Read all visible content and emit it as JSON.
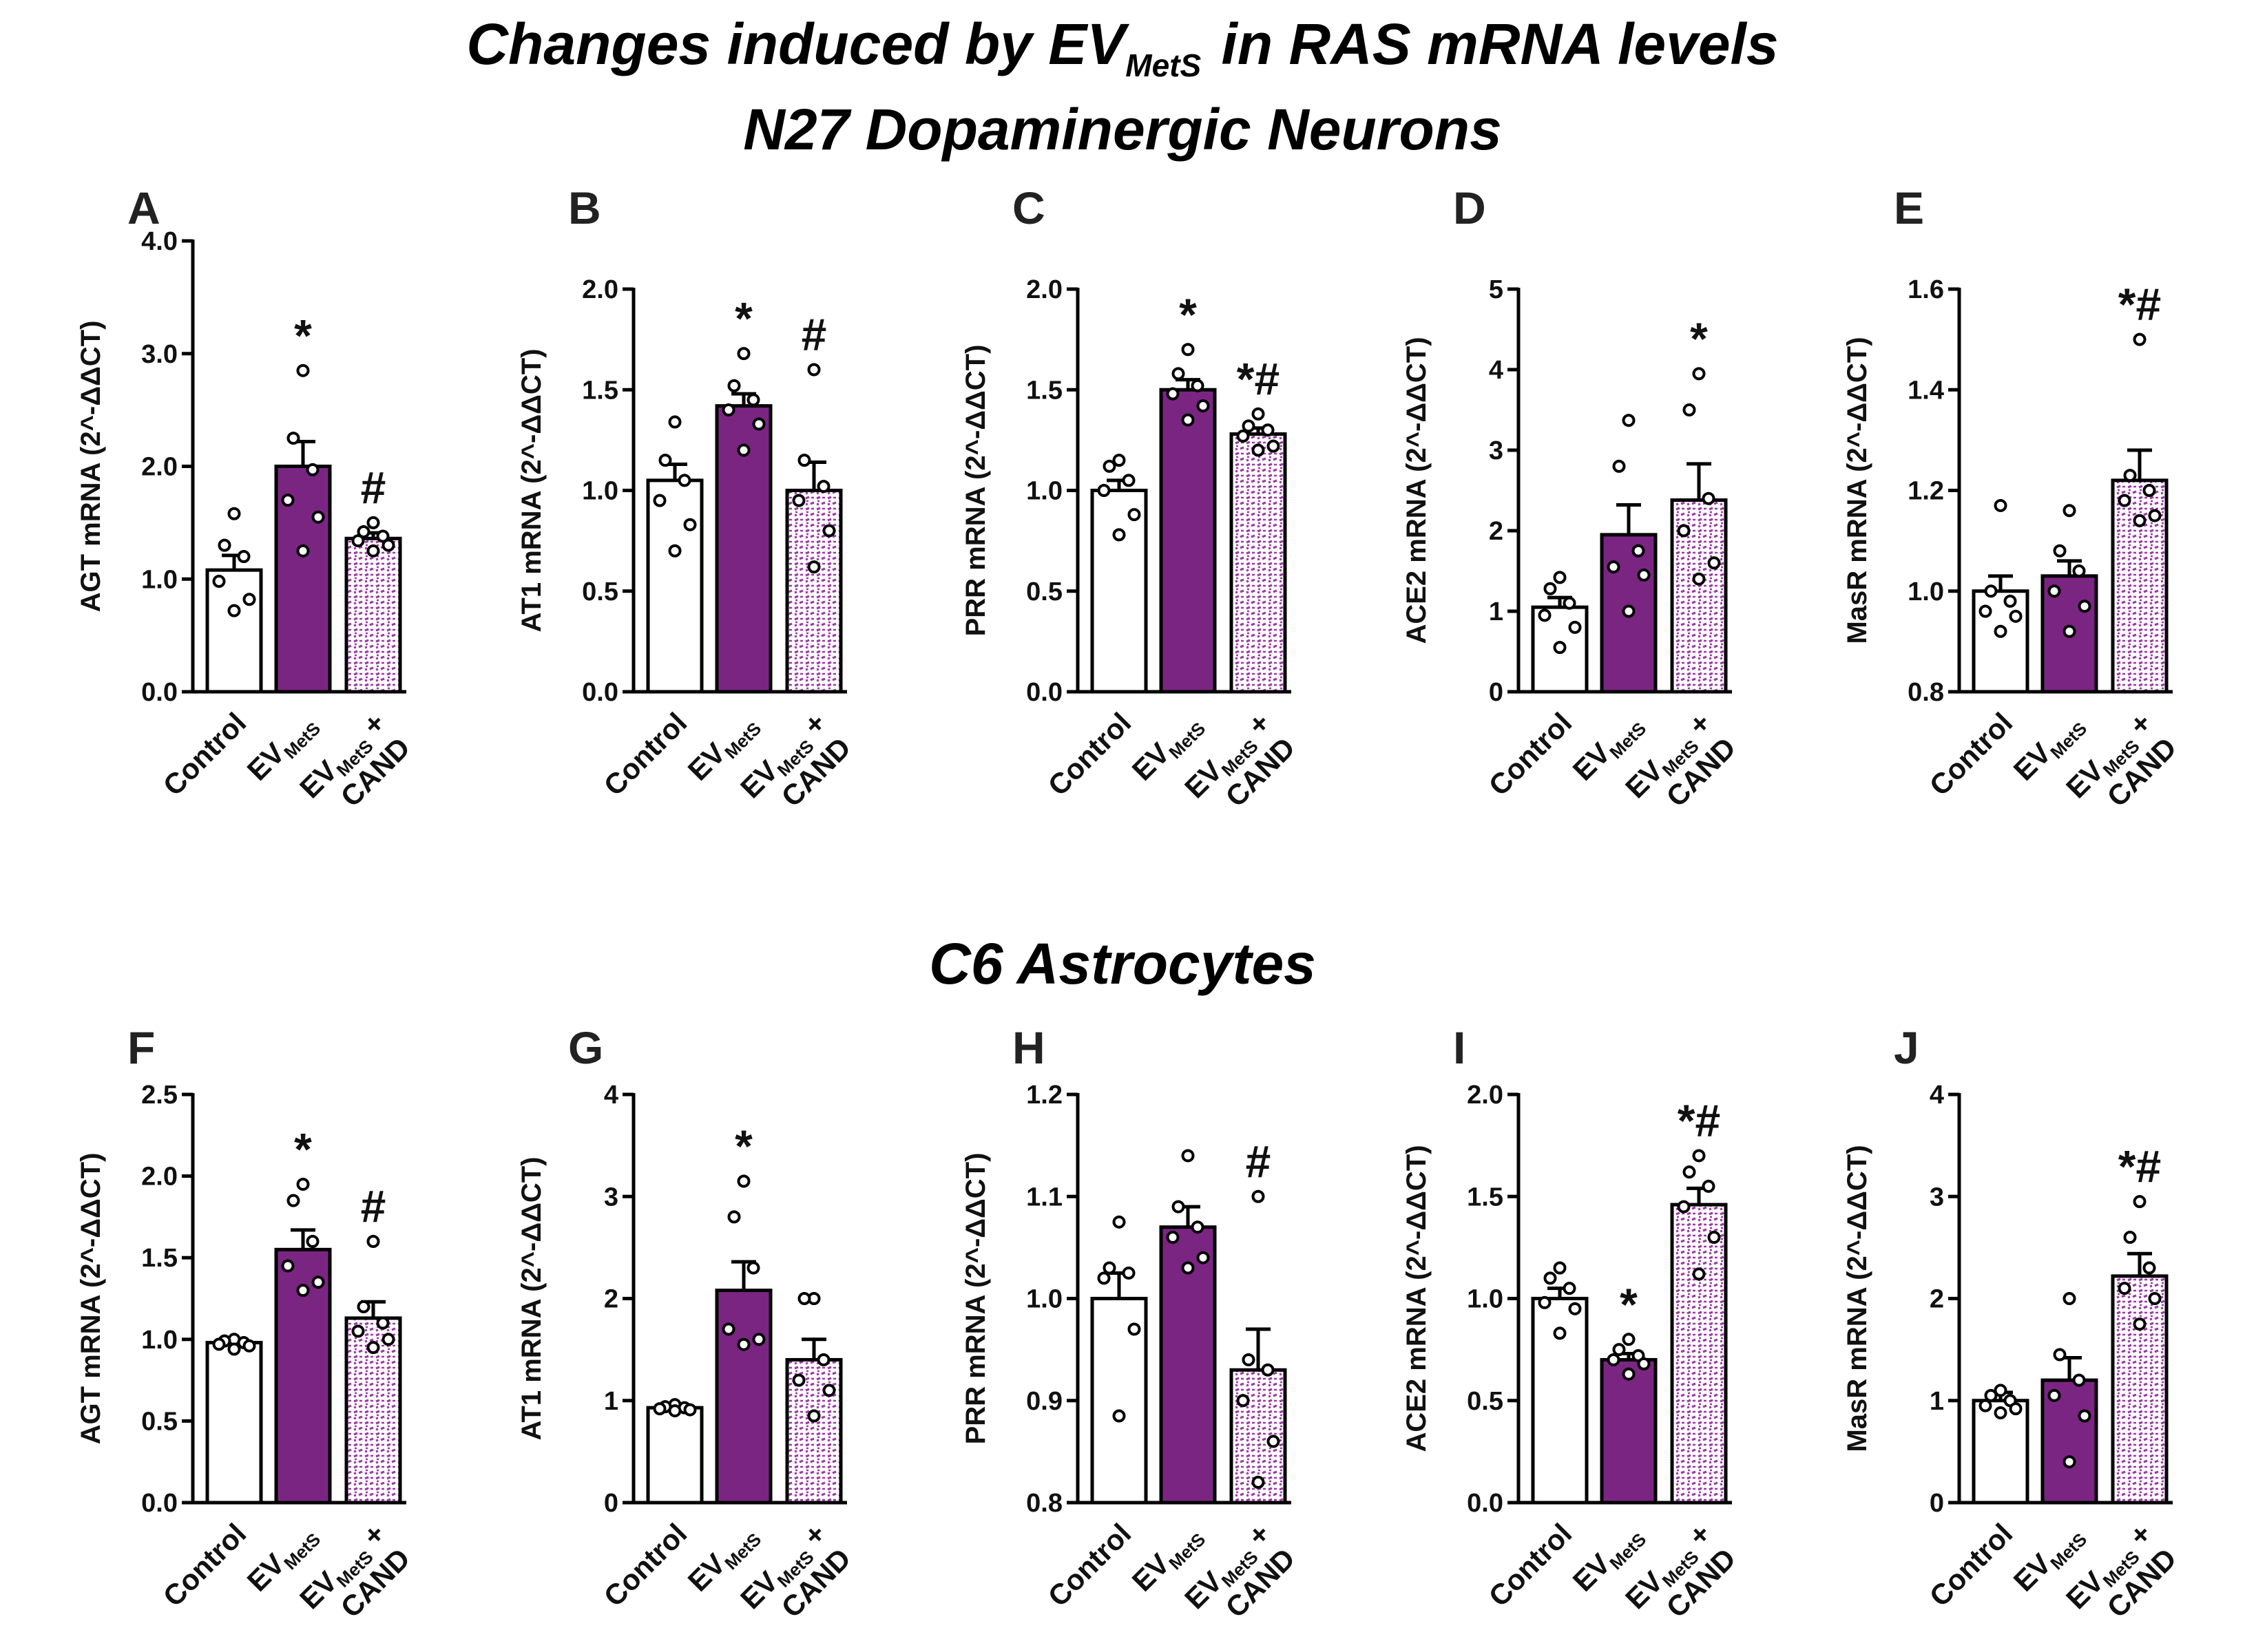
{
  "figure": {
    "title_prefix": "Changes induced by EV",
    "title_sub": "MetS",
    "title_suffix": " in RAS mRNA levels",
    "section1": "N27 Dopaminergic Neurons",
    "section2": "C6 Astrocytes"
  },
  "colors": {
    "control": "#ffffff",
    "evmets": "#7b2583",
    "cand_pattern": "#9b3ba6",
    "axis": "#000000"
  },
  "groups": [
    {
      "main": "Control",
      "sub": "",
      "tail": "",
      "line2": ""
    },
    {
      "main": "EV",
      "sub": "MetS",
      "tail": "",
      "line2": ""
    },
    {
      "main": "EV",
      "sub": "MetS",
      "tail": " +",
      "line2": "CAND"
    }
  ],
  "chart_data": [
    {
      "type": "bar",
      "panel": "A",
      "ylabel": "AGT mRNA (2^-ΔΔCT)",
      "ylim": [
        0,
        4.0
      ],
      "yticks": [
        "0.0",
        "1.0",
        "2.0",
        "3.0",
        "4.0"
      ],
      "ytick_values": [
        0,
        1,
        2,
        3,
        4
      ],
      "categories": [
        "Control",
        "EV MetS",
        "EV MetS + CAND"
      ],
      "values": [
        1.08,
        2.0,
        1.36
      ],
      "sem": [
        0.13,
        0.22,
        0.05
      ],
      "points": [
        [
          1.58,
          1.3,
          1.2,
          0.98,
          0.82,
          0.72
        ],
        [
          2.85,
          2.25,
          1.97,
          1.7,
          1.55,
          1.25
        ],
        [
          1.5,
          1.42,
          1.38,
          1.34,
          1.3,
          1.25
        ]
      ],
      "annotations": [
        "",
        "*",
        "#"
      ]
    },
    {
      "type": "bar",
      "panel": "B",
      "ylabel": "AT1 mRNA (2^-ΔΔCT)",
      "ylim": [
        0,
        2.0
      ],
      "yticks": [
        "0.0",
        "0.5",
        "1.0",
        "1.5",
        "2.0"
      ],
      "ytick_values": [
        0,
        0.5,
        1,
        1.5,
        2
      ],
      "categories": [
        "Control",
        "EV MetS",
        "EV MetS + CAND"
      ],
      "values": [
        1.05,
        1.42,
        1.0
      ],
      "sem": [
        0.08,
        0.06,
        0.14
      ],
      "points": [
        [
          1.34,
          1.15,
          1.05,
          0.95,
          0.83,
          0.7
        ],
        [
          1.68,
          1.52,
          1.45,
          1.4,
          1.33,
          1.2
        ],
        [
          1.6,
          1.15,
          1.02,
          0.95,
          0.8,
          0.62
        ]
      ],
      "annotations": [
        "",
        "*",
        "#"
      ]
    },
    {
      "type": "bar",
      "panel": "C",
      "ylabel": "PRR mRNA (2^-ΔΔCT)",
      "ylim": [
        0,
        2.0
      ],
      "yticks": [
        "0.0",
        "0.5",
        "1.0",
        "1.5",
        "2.0"
      ],
      "ytick_values": [
        0,
        0.5,
        1,
        1.5,
        2
      ],
      "categories": [
        "Control",
        "EV MetS",
        "EV MetS + CAND"
      ],
      "values": [
        1.0,
        1.5,
        1.28
      ],
      "sem": [
        0.05,
        0.05,
        0.03
      ],
      "points": [
        [
          1.15,
          1.12,
          1.05,
          1.0,
          0.88,
          0.78
        ],
        [
          1.7,
          1.58,
          1.52,
          1.48,
          1.42,
          1.35
        ],
        [
          1.38,
          1.32,
          1.3,
          1.27,
          1.22,
          1.2
        ]
      ],
      "annotations": [
        "",
        "*",
        "*#"
      ]
    },
    {
      "type": "bar",
      "panel": "D",
      "ylabel": "ACE2 mRNA (2^-ΔΔCT)",
      "ylim": [
        0,
        5
      ],
      "yticks": [
        "0",
        "1",
        "2",
        "3",
        "4",
        "5"
      ],
      "ytick_values": [
        0,
        1,
        2,
        3,
        4,
        5
      ],
      "categories": [
        "Control",
        "EV MetS",
        "EV MetS + CAND"
      ],
      "values": [
        1.05,
        1.95,
        2.38
      ],
      "sem": [
        0.12,
        0.37,
        0.45
      ],
      "points": [
        [
          1.42,
          1.28,
          1.1,
          0.95,
          0.8,
          0.55
        ],
        [
          3.37,
          2.8,
          1.75,
          1.55,
          1.45,
          1.0
        ],
        [
          3.95,
          3.5,
          2.4,
          2.0,
          1.6,
          1.4
        ]
      ],
      "annotations": [
        "",
        "",
        "*"
      ]
    },
    {
      "type": "bar",
      "panel": "E",
      "ylabel": "MasR mRNA (2^-ΔΔCT)",
      "ylim": [
        0.8,
        1.6
      ],
      "yticks": [
        "0.8",
        "1.0",
        "1.2",
        "1.4",
        "1.6"
      ],
      "ytick_values": [
        0.8,
        1.0,
        1.2,
        1.4,
        1.6
      ],
      "categories": [
        "Control",
        "EV MetS",
        "EV MetS + CAND"
      ],
      "values": [
        1.0,
        1.03,
        1.22
      ],
      "sem": [
        0.03,
        0.03,
        0.06
      ],
      "points": [
        [
          1.17,
          1.0,
          0.98,
          0.96,
          0.95,
          0.92
        ],
        [
          1.16,
          1.08,
          1.04,
          1.0,
          0.97,
          0.92
        ],
        [
          1.5,
          1.23,
          1.2,
          1.18,
          1.15,
          1.14
        ]
      ],
      "annotations": [
        "",
        "",
        "*#"
      ]
    },
    {
      "type": "bar",
      "panel": "F",
      "ylabel": "AGT mRNA (2^-ΔΔCT)",
      "ylim": [
        0,
        2.5
      ],
      "yticks": [
        "0.0",
        "0.5",
        "1.0",
        "1.5",
        "2.0",
        "2.5"
      ],
      "ytick_values": [
        0,
        0.5,
        1,
        1.5,
        2,
        2.5
      ],
      "categories": [
        "Control",
        "EV MetS",
        "EV MetS + CAND"
      ],
      "values": [
        0.98,
        1.55,
        1.13
      ],
      "sem": [
        0.02,
        0.12,
        0.1
      ],
      "points": [
        [
          1.0,
          0.99,
          0.98,
          0.97,
          0.96,
          0.94
        ],
        [
          1.95,
          1.85,
          1.6,
          1.45,
          1.35,
          1.3
        ],
        [
          1.6,
          1.2,
          1.1,
          1.05,
          1.0,
          0.95
        ]
      ],
      "annotations": [
        "",
        "*",
        "#"
      ]
    },
    {
      "type": "bar",
      "panel": "G",
      "ylabel": "AT1 mRNA (2^-ΔΔCT)",
      "ylim": [
        0,
        4
      ],
      "yticks": [
        "0",
        "1",
        "2",
        "3",
        "4"
      ],
      "ytick_values": [
        0,
        1,
        2,
        3,
        4
      ],
      "categories": [
        "Control",
        "EV MetS",
        "EV MetS + CAND"
      ],
      "values": [
        0.93,
        2.08,
        1.4
      ],
      "sem": [
        0.03,
        0.28,
        0.2
      ],
      "points": [
        [
          0.96,
          0.94,
          0.93,
          0.92,
          0.91,
          0.9
        ],
        [
          3.15,
          2.8,
          2.3,
          1.7,
          1.6,
          1.55
        ],
        [
          2.0,
          2.0,
          1.4,
          1.2,
          1.1,
          0.85
        ]
      ],
      "annotations": [
        "",
        "*",
        ""
      ]
    },
    {
      "type": "bar",
      "panel": "H",
      "ylabel": "PRR mRNA (2^-ΔΔCT)",
      "ylim": [
        0.8,
        1.2
      ],
      "yticks": [
        "0.8",
        "0.9",
        "1.0",
        "1.1",
        "1.2"
      ],
      "ytick_values": [
        0.8,
        0.9,
        1.0,
        1.1,
        1.2
      ],
      "categories": [
        "Control",
        "EV MetS",
        "EV MetS + CAND"
      ],
      "values": [
        1.0,
        1.07,
        0.93
      ],
      "sem": [
        0.025,
        0.02,
        0.04
      ],
      "points": [
        [
          1.075,
          1.03,
          1.025,
          1.02,
          0.97,
          0.885
        ],
        [
          1.14,
          1.09,
          1.07,
          1.06,
          1.04,
          1.03
        ],
        [
          1.1,
          0.94,
          0.93,
          0.9,
          0.86,
          0.82
        ]
      ],
      "annotations": [
        "",
        "",
        "#"
      ]
    },
    {
      "type": "bar",
      "panel": "I",
      "ylabel": "ACE2 mRNA (2^-ΔΔCT)",
      "ylim": [
        0,
        2.0
      ],
      "yticks": [
        "0.0",
        "0.5",
        "1.0",
        "1.5",
        "2.0"
      ],
      "ytick_values": [
        0,
        0.5,
        1,
        1.5,
        2
      ],
      "categories": [
        "Control",
        "EV MetS",
        "EV MetS + CAND"
      ],
      "values": [
        1.0,
        0.7,
        1.46
      ],
      "sem": [
        0.05,
        0.03,
        0.08
      ],
      "points": [
        [
          1.15,
          1.1,
          1.05,
          0.98,
          0.95,
          0.83
        ],
        [
          0.8,
          0.75,
          0.72,
          0.7,
          0.68,
          0.63
        ],
        [
          1.7,
          1.62,
          1.55,
          1.45,
          1.3,
          1.12
        ]
      ],
      "annotations": [
        "",
        "*",
        "*#"
      ]
    },
    {
      "type": "bar",
      "panel": "J",
      "ylabel": "MasR mRNA (2^-ΔΔCT)",
      "ylim": [
        0,
        4
      ],
      "yticks": [
        "0",
        "1",
        "2",
        "3",
        "4"
      ],
      "ytick_values": [
        0,
        1,
        2,
        3,
        4
      ],
      "categories": [
        "Control",
        "EV MetS",
        "EV MetS + CAND"
      ],
      "values": [
        1.0,
        1.2,
        2.22
      ],
      "sem": [
        0.08,
        0.22,
        0.22
      ],
      "points": [
        [
          1.1,
          1.05,
          1.0,
          0.95,
          0.92,
          0.88
        ],
        [
          2.0,
          1.45,
          1.2,
          1.05,
          0.85,
          0.4
        ],
        [
          2.95,
          2.6,
          2.3,
          2.1,
          2.0,
          1.75
        ]
      ],
      "annotations": [
        "",
        "",
        "*#"
      ]
    }
  ]
}
